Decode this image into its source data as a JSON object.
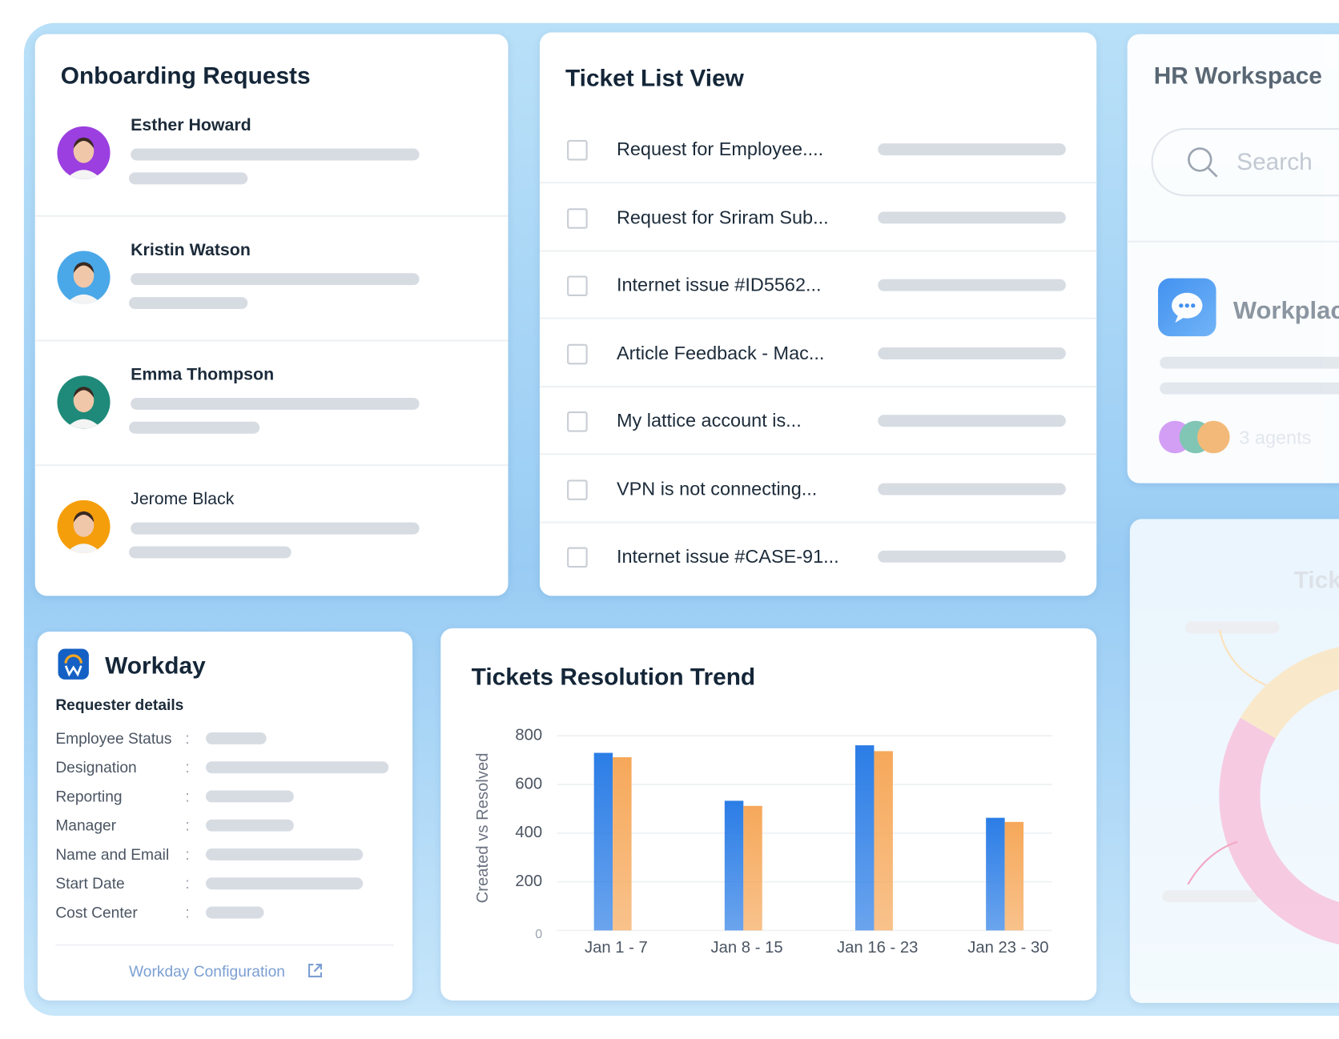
{
  "onboarding": {
    "title": "Onboarding Requests",
    "people": [
      "Esther Howard",
      "Kristin Watson",
      "Emma Thompson",
      "Jerome Black"
    ]
  },
  "tickets": {
    "title": "Ticket List View",
    "items": [
      "Request for Employee....",
      "Request for Sriram Sub...",
      "Internet issue #ID5562...",
      "Article Feedback - Mac...",
      "My lattice account is...",
      "VPN is not connecting...",
      "Internet issue #CASE-91..."
    ]
  },
  "workday": {
    "title": "Workday",
    "subtitle": "Requester details",
    "fields": [
      "Employee Status",
      "Designation",
      "Reporting",
      "Manager",
      "Name and Email",
      "Start Date",
      "Cost Center"
    ],
    "link": "Workday Configuration"
  },
  "chart_data": {
    "type": "bar",
    "title": "Tickets Resolution Trend",
    "y_label": "Created vs Resolved",
    "categories": [
      "Jan 1 - 7",
      "Jan 8 - 15",
      "Jan 16 - 23",
      "Jan 23 - 30"
    ],
    "series": [
      {
        "color": "#2b7de6",
        "values": [
          730,
          533,
          761,
          463
        ]
      },
      {
        "color": "#f6a85a",
        "values": [
          712,
          512,
          737,
          446
        ]
      }
    ],
    "ylim": [
      0,
      800
    ],
    "yticks": [
      0,
      200,
      400,
      600,
      800
    ],
    "grid": true
  },
  "hr_workspace": {
    "title": "HR Workspace",
    "search": "Search",
    "app": "Workplac",
    "agents": "3 agents"
  },
  "ticket_panel": {
    "title": "Tick"
  }
}
